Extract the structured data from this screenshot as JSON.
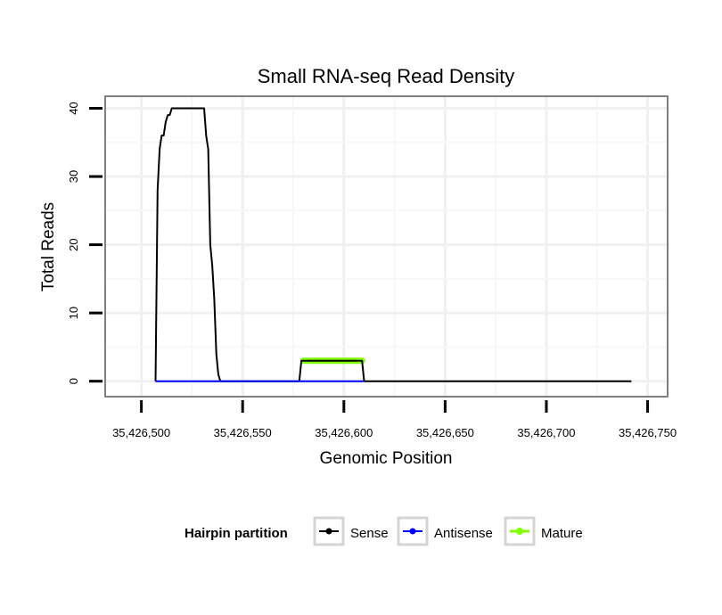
{
  "chart_data": {
    "type": "line",
    "title": "Small RNA-seq Read Density",
    "xlabel": "Genomic Position",
    "ylabel": "Total Reads",
    "xlim": [
      35426483,
      35426759
    ],
    "ylim": [
      -2,
      41.5
    ],
    "x_ticks": [
      35426500,
      35426550,
      35426600,
      35426650,
      35426700,
      35426750
    ],
    "x_tick_labels": [
      "35,426,500",
      "35,426,550",
      "35,426,600",
      "35,426,650",
      "35,426,700",
      "35,426,750"
    ],
    "y_ticks": [
      0,
      10,
      20,
      30,
      40
    ],
    "y_tick_labels": [
      "0",
      "10",
      "20",
      "30",
      "40"
    ],
    "grid": true,
    "legend": {
      "title": "Hairpin partition",
      "placement": "bottom",
      "items": [
        "Sense",
        "Antisense",
        "Mature"
      ]
    },
    "series": [
      {
        "name": "Sense",
        "color": "#000000",
        "x": [
          35426507,
          35426508,
          35426509,
          35426510,
          35426511,
          35426512,
          35426513,
          35426514,
          35426515,
          35426516,
          35426517,
          35426518,
          35426519,
          35426520,
          35426521,
          35426522,
          35426523,
          35426524,
          35426525,
          35426526,
          35426527,
          35426528,
          35426529,
          35426530,
          35426531,
          35426532,
          35426533,
          35426534,
          35426535,
          35426536,
          35426537,
          35426538,
          35426539,
          35426540,
          35426541,
          35426542,
          35426578,
          35426579,
          35426580,
          35426581,
          35426608,
          35426609,
          35426610,
          35426742
        ],
        "y": [
          0,
          28,
          34,
          36,
          36,
          38,
          39,
          39,
          40,
          40,
          40,
          40,
          40,
          40,
          40,
          40,
          40,
          40,
          40,
          40,
          40,
          40,
          40,
          40,
          40,
          36,
          34,
          20,
          17,
          12,
          4,
          1,
          0,
          0,
          0,
          0,
          0,
          3,
          3,
          3,
          3,
          3,
          0,
          0
        ]
      },
      {
        "name": "Antisense",
        "color": "#0000ff",
        "x": [
          35426507,
          35426610
        ],
        "y": [
          0,
          0
        ]
      },
      {
        "name": "Mature",
        "color": "#7fff00",
        "x": [
          35426580,
          35426609
        ],
        "y": [
          3,
          3
        ]
      }
    ]
  }
}
